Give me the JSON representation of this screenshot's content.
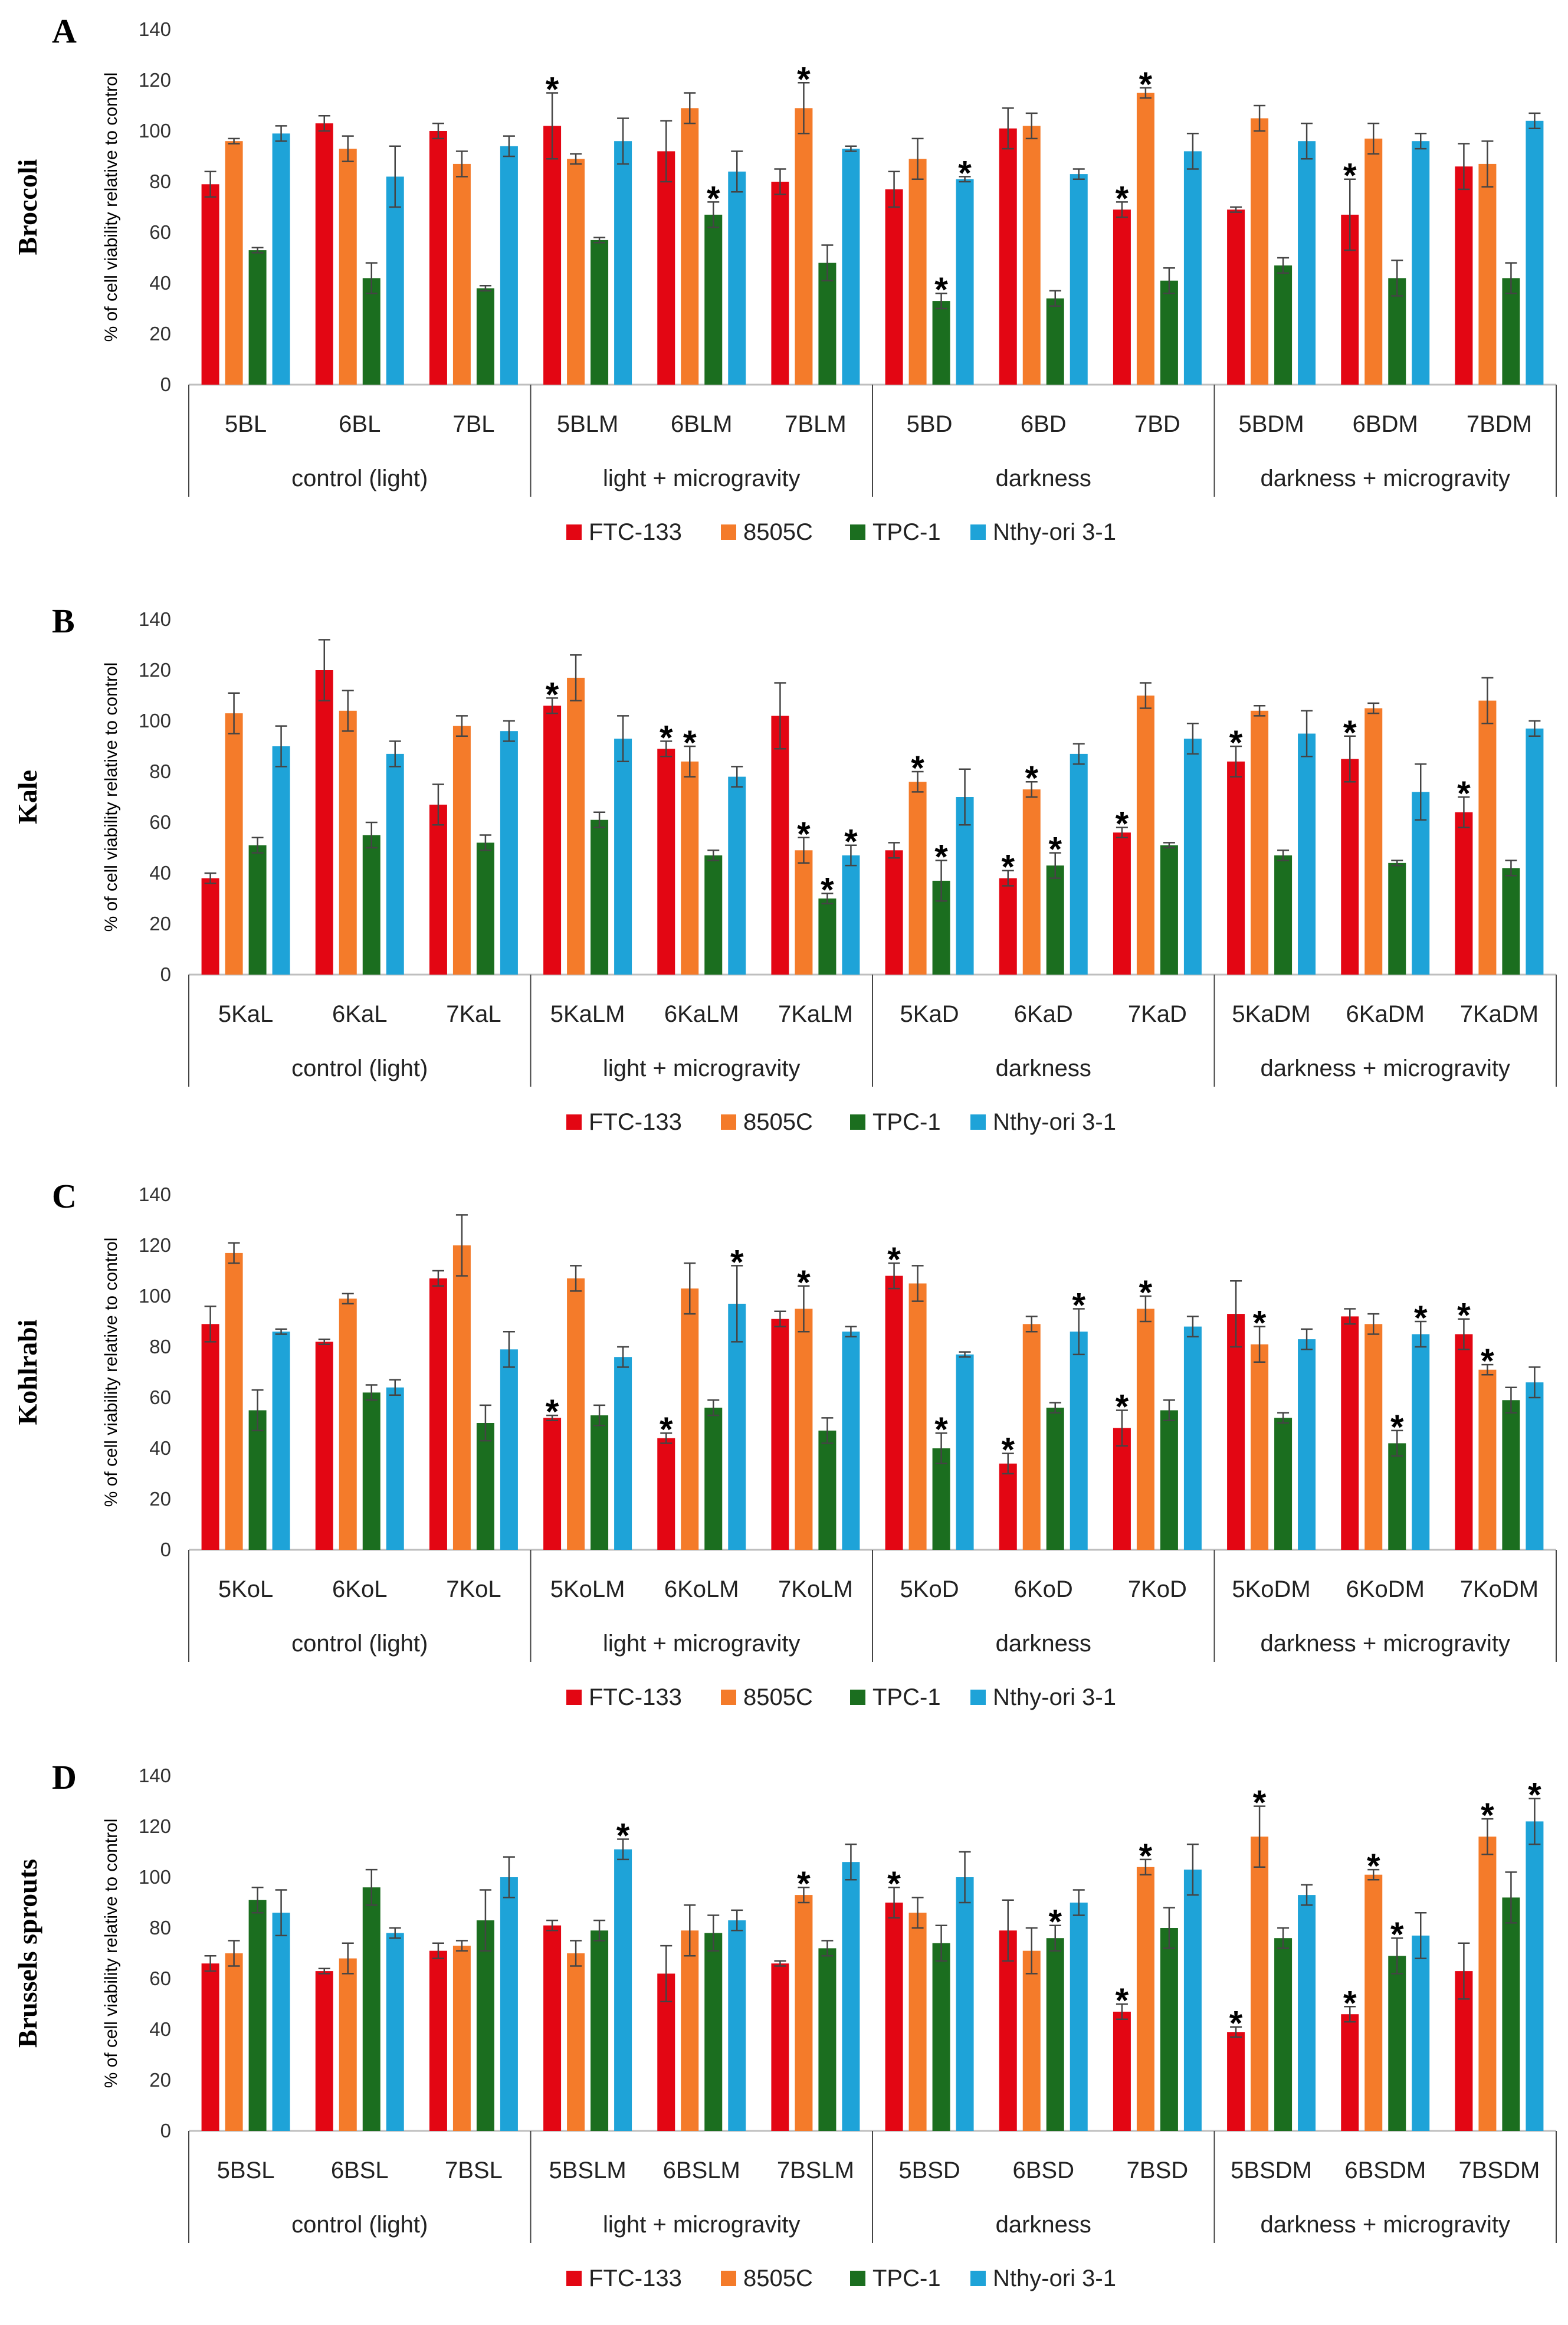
{
  "legend": [
    {
      "name": "FTC-133",
      "color": "#E30613"
    },
    {
      "name": "8505C",
      "color": "#F47B2A"
    },
    {
      "name": "TPC-1",
      "color": "#1B6E1F"
    },
    {
      "name": "Nthy-ori 3-1",
      "color": "#1EA3D8"
    }
  ],
  "chart_data": [
    {
      "type": "bar",
      "panel": "A",
      "title": "Broccoli",
      "ylabel": "% of cell viability relative to control",
      "ylim": [
        0,
        140
      ],
      "yticks": [
        "0",
        "20",
        "40",
        "60",
        "80",
        "100",
        "120",
        "140"
      ],
      "groups": [
        "control (light)",
        "light + microgravity",
        "darkness",
        "darkness + microgravity"
      ],
      "categories": [
        "5BL",
        "6BL",
        "7BL",
        "5BLM",
        "6BLM",
        "7BLM",
        "5BD",
        "6BD",
        "7BD",
        "5BDM",
        "6BDM",
        "7BDM"
      ],
      "series": [
        {
          "name": "FTC-133",
          "values": [
            79,
            103,
            100,
            102,
            92,
            80,
            77,
            101,
            69,
            69,
            67,
            86
          ],
          "errors": [
            5,
            3,
            3,
            13,
            12,
            5,
            7,
            8,
            3,
            1,
            14,
            9
          ],
          "stars": [
            false,
            false,
            false,
            true,
            false,
            false,
            false,
            false,
            true,
            false,
            true,
            false
          ]
        },
        {
          "name": "8505C",
          "values": [
            96,
            93,
            87,
            89,
            109,
            109,
            89,
            102,
            115,
            105,
            97,
            87
          ],
          "errors": [
            1,
            5,
            5,
            2,
            6,
            10,
            8,
            5,
            2,
            5,
            6,
            9
          ],
          "stars": [
            false,
            false,
            false,
            false,
            false,
            true,
            false,
            false,
            true,
            false,
            false,
            false
          ]
        },
        {
          "name": "TPC-1",
          "values": [
            53,
            42,
            38,
            57,
            67,
            48,
            33,
            34,
            41,
            47,
            42,
            42
          ],
          "errors": [
            1,
            6,
            1,
            1,
            5,
            7,
            3,
            3,
            5,
            3,
            7,
            6
          ],
          "stars": [
            false,
            false,
            false,
            false,
            true,
            false,
            true,
            false,
            false,
            false,
            false,
            false
          ]
        },
        {
          "name": "Nthy-ori 3-1",
          "values": [
            99,
            82,
            94,
            96,
            84,
            93,
            81,
            83,
            92,
            96,
            96,
            104
          ],
          "errors": [
            3,
            12,
            4,
            9,
            8,
            1,
            1,
            2,
            7,
            7,
            3,
            3
          ],
          "stars": [
            false,
            false,
            false,
            false,
            false,
            false,
            true,
            false,
            false,
            false,
            false,
            false
          ]
        }
      ]
    },
    {
      "type": "bar",
      "panel": "B",
      "title": "Kale",
      "ylabel": "% of cell viability relative to control",
      "ylim": [
        0,
        140
      ],
      "yticks": [
        "0",
        "20",
        "40",
        "60",
        "80",
        "100",
        "120",
        "140"
      ],
      "groups": [
        "control (light)",
        "light + microgravity",
        "darkness",
        "darkness + microgravity"
      ],
      "categories": [
        "5KaL",
        "6KaL",
        "7KaL",
        "5KaLM",
        "6KaLM",
        "7KaLM",
        "5KaD",
        "6KaD",
        "7KaD",
        "5KaDM",
        "6KaDM",
        "7KaDM"
      ],
      "series": [
        {
          "name": "FTC-133",
          "values": [
            38,
            120,
            67,
            106,
            89,
            102,
            49,
            38,
            56,
            84,
            85,
            64
          ],
          "errors": [
            2,
            12,
            8,
            3,
            3,
            13,
            3,
            3,
            2,
            6,
            9,
            6
          ],
          "stars": [
            false,
            false,
            false,
            true,
            true,
            false,
            false,
            true,
            true,
            true,
            true,
            true
          ]
        },
        {
          "name": "8505C",
          "values": [
            103,
            104,
            98,
            117,
            84,
            49,
            76,
            73,
            110,
            104,
            105,
            108
          ],
          "errors": [
            8,
            8,
            4,
            9,
            6,
            5,
            4,
            3,
            5,
            2,
            2,
            9
          ],
          "stars": [
            false,
            false,
            false,
            false,
            true,
            true,
            true,
            true,
            false,
            false,
            false,
            false
          ]
        },
        {
          "name": "TPC-1",
          "values": [
            51,
            55,
            52,
            61,
            47,
            30,
            37,
            43,
            51,
            47,
            44,
            42
          ],
          "errors": [
            3,
            5,
            3,
            3,
            2,
            2,
            8,
            5,
            1,
            2,
            1,
            3
          ],
          "stars": [
            false,
            false,
            false,
            false,
            false,
            true,
            true,
            true,
            false,
            false,
            false,
            false
          ]
        },
        {
          "name": "Nthy-ori 3-1",
          "values": [
            90,
            87,
            96,
            93,
            78,
            47,
            70,
            87,
            93,
            95,
            72,
            97
          ],
          "errors": [
            8,
            5,
            4,
            9,
            4,
            4,
            11,
            4,
            6,
            9,
            11,
            3
          ],
          "stars": [
            false,
            false,
            false,
            false,
            false,
            true,
            false,
            false,
            false,
            false,
            false,
            false
          ]
        }
      ]
    },
    {
      "type": "bar",
      "panel": "C",
      "title": "Kohlrabi",
      "ylabel": "% of cell viability relative to control",
      "ylim": [
        0,
        140
      ],
      "yticks": [
        "0",
        "20",
        "40",
        "60",
        "80",
        "100",
        "120",
        "140"
      ],
      "groups": [
        "control (light)",
        "light + microgravity",
        "darkness",
        "darkness + microgravity"
      ],
      "categories": [
        "5KoL",
        "6KoL",
        "7KoL",
        "5KoLM",
        "6KoLM",
        "7KoLM",
        "5KoD",
        "6KoD",
        "7KoD",
        "5KoDM",
        "6KoDM",
        "7KoDM"
      ],
      "series": [
        {
          "name": "FTC-133",
          "values": [
            89,
            82,
            107,
            52,
            44,
            91,
            108,
            34,
            48,
            93,
            92,
            85
          ],
          "errors": [
            7,
            1,
            3,
            1,
            2,
            3,
            5,
            4,
            7,
            13,
            3,
            6
          ],
          "stars": [
            false,
            false,
            false,
            true,
            true,
            false,
            true,
            true,
            true,
            false,
            false,
            true
          ]
        },
        {
          "name": "8505C",
          "values": [
            117,
            99,
            120,
            107,
            103,
            95,
            105,
            89,
            95,
            81,
            89,
            71
          ],
          "errors": [
            4,
            2,
            12,
            5,
            10,
            9,
            7,
            3,
            5,
            7,
            4,
            2
          ],
          "stars": [
            false,
            false,
            false,
            false,
            false,
            true,
            false,
            false,
            true,
            true,
            false,
            true
          ]
        },
        {
          "name": "TPC-1",
          "values": [
            55,
            62,
            50,
            53,
            56,
            47,
            40,
            56,
            55,
            52,
            42,
            59
          ],
          "errors": [
            8,
            3,
            7,
            4,
            3,
            5,
            6,
            2,
            4,
            2,
            5,
            5
          ],
          "stars": [
            false,
            false,
            false,
            false,
            false,
            false,
            true,
            false,
            false,
            false,
            true,
            false
          ]
        },
        {
          "name": "Nthy-ori 3-1",
          "values": [
            86,
            64,
            79,
            76,
            97,
            86,
            77,
            86,
            88,
            83,
            85,
            66
          ],
          "errors": [
            1,
            3,
            7,
            4,
            15,
            2,
            1,
            9,
            4,
            4,
            5,
            6
          ],
          "stars": [
            false,
            false,
            false,
            false,
            true,
            false,
            false,
            true,
            false,
            false,
            true,
            false
          ]
        }
      ]
    },
    {
      "type": "bar",
      "panel": "D",
      "title": "Brussels sprouts",
      "ylabel": "% of cell viability relative to control",
      "ylim": [
        0,
        140
      ],
      "yticks": [
        "0",
        "20",
        "40",
        "60",
        "80",
        "100",
        "120",
        "140"
      ],
      "groups": [
        "control (light)",
        "light + microgravity",
        "darkness",
        "darkness + microgravity"
      ],
      "categories": [
        "5BSL",
        "6BSL",
        "7BSL",
        "5BSLM",
        "6BSLM",
        "7BSLM",
        "5BSD",
        "6BSD",
        "7BSD",
        "5BSDM",
        "6BSDM",
        "7BSDM"
      ],
      "series": [
        {
          "name": "FTC-133",
          "values": [
            66,
            63,
            71,
            81,
            62,
            66,
            90,
            79,
            47,
            39,
            46,
            63
          ],
          "errors": [
            3,
            1,
            3,
            2,
            11,
            1,
            6,
            12,
            3,
            2,
            3,
            11
          ],
          "stars": [
            false,
            false,
            false,
            false,
            false,
            false,
            true,
            false,
            true,
            true,
            true,
            false
          ]
        },
        {
          "name": "8505C",
          "values": [
            70,
            68,
            73,
            70,
            79,
            93,
            86,
            71,
            104,
            116,
            101,
            116
          ],
          "errors": [
            5,
            6,
            2,
            5,
            10,
            3,
            6,
            9,
            3,
            12,
            2,
            7
          ],
          "stars": [
            false,
            false,
            false,
            false,
            false,
            true,
            false,
            false,
            true,
            true,
            true,
            true
          ]
        },
        {
          "name": "TPC-1",
          "values": [
            91,
            96,
            83,
            79,
            78,
            72,
            74,
            76,
            80,
            76,
            69,
            92
          ],
          "errors": [
            5,
            7,
            12,
            4,
            7,
            3,
            7,
            5,
            8,
            4,
            7,
            10
          ],
          "stars": [
            false,
            false,
            false,
            false,
            false,
            false,
            false,
            true,
            false,
            false,
            true,
            false
          ]
        },
        {
          "name": "Nthy-ori 3-1",
          "values": [
            86,
            78,
            100,
            111,
            83,
            106,
            100,
            90,
            103,
            93,
            77,
            122
          ],
          "errors": [
            9,
            2,
            8,
            4,
            4,
            7,
            10,
            5,
            10,
            4,
            9,
            9
          ],
          "stars": [
            false,
            false,
            false,
            true,
            false,
            false,
            false,
            false,
            false,
            false,
            false,
            true
          ]
        }
      ]
    }
  ]
}
